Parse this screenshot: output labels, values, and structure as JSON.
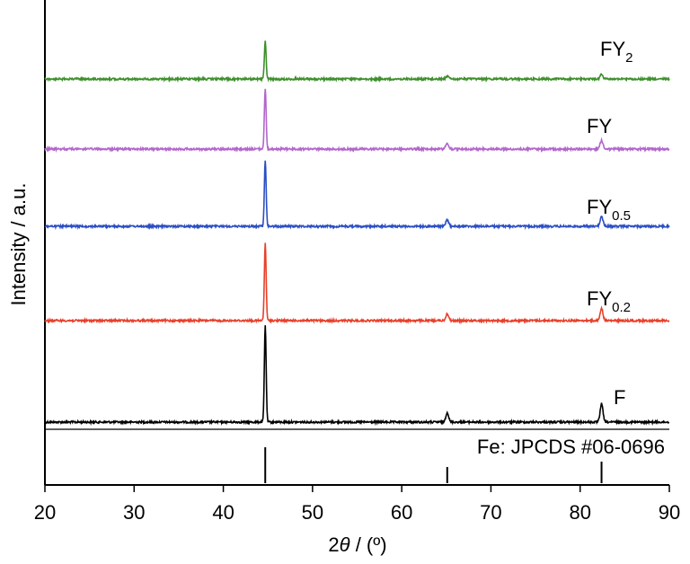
{
  "chart_data": {
    "type": "line",
    "xlabel_prefix": "2",
    "xlabel_theta": "θ",
    "xlabel_suffix": " / (º)",
    "ylabel": "Intensity / a.u.",
    "xlim": [
      20,
      90
    ],
    "x_ticks": [
      20,
      30,
      40,
      50,
      60,
      70,
      80,
      90
    ],
    "x_tick_labels": [
      "20",
      "30",
      "40",
      "50",
      "60",
      "70",
      "80",
      "90"
    ],
    "series": [
      {
        "name": "F",
        "label_main": "F",
        "label_sub": "",
        "color": "#000000",
        "peaks": [
          {
            "x": 44.7,
            "height": 1.0
          },
          {
            "x": 65.1,
            "height": 0.1
          },
          {
            "x": 82.4,
            "height": 0.19
          }
        ]
      },
      {
        "name": "FY0.2",
        "label_main": "FY",
        "label_sub": "0.2",
        "color": "#e8402a",
        "peaks": [
          {
            "x": 44.7,
            "height": 0.88
          },
          {
            "x": 65.1,
            "height": 0.08
          },
          {
            "x": 82.4,
            "height": 0.14
          }
        ]
      },
      {
        "name": "FY0.5",
        "label_main": "FY",
        "label_sub": "0.5",
        "color": "#2b4fc4",
        "peaks": [
          {
            "x": 44.7,
            "height": 0.7
          },
          {
            "x": 65.1,
            "height": 0.07
          },
          {
            "x": 82.4,
            "height": 0.11
          }
        ]
      },
      {
        "name": "FY",
        "label_main": "FY",
        "label_sub": "",
        "color": "#b266cc",
        "peaks": [
          {
            "x": 44.7,
            "height": 0.62
          },
          {
            "x": 65.1,
            "height": 0.06
          },
          {
            "x": 82.4,
            "height": 0.09
          }
        ]
      },
      {
        "name": "FY2",
        "label_main": "FY",
        "label_sub": "2",
        "color": "#3d8f2b",
        "peaks": [
          {
            "x": 44.7,
            "height": 0.38
          },
          {
            "x": 65.1,
            "height": 0.03
          },
          {
            "x": 82.4,
            "height": 0.05
          }
        ]
      }
    ],
    "reference": {
      "label": "Fe: JPCDS #06-0696",
      "lines": [
        {
          "x": 44.7,
          "height": 1.0
        },
        {
          "x": 65.1,
          "height": 0.45
        },
        {
          "x": 82.4,
          "height": 0.6
        }
      ]
    }
  }
}
